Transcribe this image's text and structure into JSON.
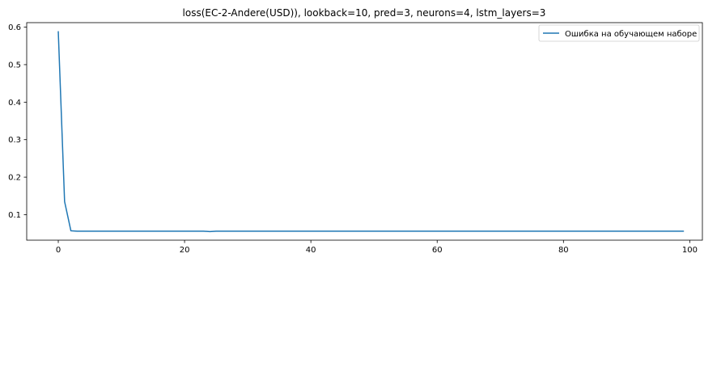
{
  "chart_data": {
    "type": "line",
    "title": "loss(EC-2-Andere(USD)), lookback=10, pred=3, neurons=4, lstm_layers=3",
    "xlabel": "",
    "ylabel": "",
    "xlim": [
      -5,
      102
    ],
    "ylim": [
      0.032,
      0.612
    ],
    "grid": false,
    "legend_position": "top-right",
    "x_ticks": [
      0,
      20,
      40,
      60,
      80,
      100
    ],
    "x_tick_labels": [
      "0",
      "20",
      "40",
      "60",
      "80",
      "100"
    ],
    "y_ticks": [
      0.1,
      0.2,
      0.3,
      0.4,
      0.5,
      0.6
    ],
    "y_tick_labels": [
      "0.1",
      "0.2",
      "0.3",
      "0.4",
      "0.5",
      "0.6"
    ],
    "series": [
      {
        "name": "Ошибка на обучающем наборе",
        "color": "#1f77b4",
        "x": [
          0,
          1,
          2,
          3,
          4,
          5,
          6,
          7,
          8,
          9,
          10,
          11,
          12,
          13,
          14,
          15,
          16,
          17,
          18,
          19,
          20,
          21,
          22,
          23,
          24,
          25,
          26,
          27,
          28,
          29,
          30,
          31,
          32,
          33,
          34,
          35,
          36,
          37,
          38,
          39,
          40,
          41,
          42,
          43,
          44,
          45,
          46,
          47,
          48,
          49,
          50,
          51,
          52,
          53,
          54,
          55,
          56,
          57,
          58,
          59,
          60,
          61,
          62,
          63,
          64,
          65,
          66,
          67,
          68,
          69,
          70,
          71,
          72,
          73,
          74,
          75,
          76,
          77,
          78,
          79,
          80,
          81,
          82,
          83,
          84,
          85,
          86,
          87,
          88,
          89,
          90,
          91,
          92,
          93,
          94,
          95,
          96,
          97,
          98,
          99
        ],
        "y": [
          0.588,
          0.135,
          0.057,
          0.056,
          0.056,
          0.056,
          0.056,
          0.056,
          0.056,
          0.056,
          0.056,
          0.056,
          0.056,
          0.056,
          0.056,
          0.056,
          0.056,
          0.056,
          0.056,
          0.056,
          0.056,
          0.056,
          0.056,
          0.056,
          0.055,
          0.056,
          0.056,
          0.056,
          0.056,
          0.056,
          0.056,
          0.056,
          0.056,
          0.056,
          0.056,
          0.056,
          0.056,
          0.056,
          0.056,
          0.056,
          0.056,
          0.056,
          0.056,
          0.056,
          0.056,
          0.056,
          0.056,
          0.056,
          0.056,
          0.056,
          0.056,
          0.056,
          0.056,
          0.056,
          0.056,
          0.056,
          0.056,
          0.056,
          0.056,
          0.056,
          0.056,
          0.056,
          0.056,
          0.056,
          0.056,
          0.056,
          0.056,
          0.056,
          0.056,
          0.056,
          0.056,
          0.056,
          0.056,
          0.056,
          0.056,
          0.056,
          0.056,
          0.056,
          0.056,
          0.056,
          0.056,
          0.056,
          0.056,
          0.056,
          0.056,
          0.056,
          0.056,
          0.056,
          0.056,
          0.056,
          0.056,
          0.056,
          0.056,
          0.056,
          0.056,
          0.056,
          0.056,
          0.056,
          0.056,
          0.056
        ]
      }
    ]
  }
}
